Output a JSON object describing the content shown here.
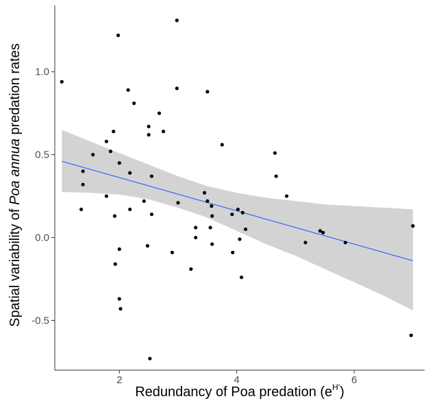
{
  "chart_data": {
    "type": "scatter",
    "title": "",
    "xlabel": "Redundancy of Poa predation (e",
    "xlabel_superscript": "H'",
    "xlabel_suffix": ")",
    "ylabel_parts": [
      "Spatial variability of ",
      "Poa annua",
      " predation rates"
    ],
    "xlim": [
      0.9,
      7.2
    ],
    "ylim": [
      -0.8,
      1.4
    ],
    "x_ticks": [
      2,
      4,
      6
    ],
    "x_tick_labels": [
      "2",
      "4",
      "6"
    ],
    "y_ticks": [
      -0.5,
      0.0,
      0.5,
      1.0
    ],
    "y_tick_labels": [
      "-0.5",
      "0.0",
      "0.5",
      "1.0"
    ],
    "grid": false,
    "legend": "none",
    "colors": {
      "points": "#000000",
      "fit_line": "#3366ff",
      "confidence_band": "#d3d3d3",
      "axis": "#333333"
    },
    "points": [
      {
        "x": 1.02,
        "y": 0.94
      },
      {
        "x": 1.35,
        "y": 0.17
      },
      {
        "x": 1.38,
        "y": 0.4
      },
      {
        "x": 1.38,
        "y": 0.32
      },
      {
        "x": 1.55,
        "y": 0.5
      },
      {
        "x": 1.78,
        "y": 0.58
      },
      {
        "x": 1.78,
        "y": 0.25
      },
      {
        "x": 1.85,
        "y": 0.52
      },
      {
        "x": 1.9,
        "y": 0.64
      },
      {
        "x": 1.92,
        "y": 0.13
      },
      {
        "x": 1.93,
        "y": -0.16
      },
      {
        "x": 1.98,
        "y": 1.22
      },
      {
        "x": 2.0,
        "y": 0.45
      },
      {
        "x": 2.0,
        "y": -0.07
      },
      {
        "x": 2.0,
        "y": -0.37
      },
      {
        "x": 2.02,
        "y": -0.43
      },
      {
        "x": 2.15,
        "y": 0.89
      },
      {
        "x": 2.18,
        "y": 0.39
      },
      {
        "x": 2.18,
        "y": 0.17
      },
      {
        "x": 2.25,
        "y": 0.81
      },
      {
        "x": 2.42,
        "y": 0.22
      },
      {
        "x": 2.48,
        "y": -0.05
      },
      {
        "x": 2.5,
        "y": 0.67
      },
      {
        "x": 2.5,
        "y": 0.62
      },
      {
        "x": 2.52,
        "y": -0.73
      },
      {
        "x": 2.55,
        "y": 0.37
      },
      {
        "x": 2.55,
        "y": 0.14
      },
      {
        "x": 2.68,
        "y": 0.75
      },
      {
        "x": 2.75,
        "y": 0.64
      },
      {
        "x": 2.9,
        "y": -0.09
      },
      {
        "x": 2.98,
        "y": 1.31
      },
      {
        "x": 2.98,
        "y": 0.9
      },
      {
        "x": 3.0,
        "y": 0.21
      },
      {
        "x": 3.22,
        "y": -0.19
      },
      {
        "x": 3.3,
        "y": 0.06
      },
      {
        "x": 3.3,
        "y": 0.0
      },
      {
        "x": 3.45,
        "y": 0.27
      },
      {
        "x": 3.5,
        "y": 0.88
      },
      {
        "x": 3.5,
        "y": 0.22
      },
      {
        "x": 3.55,
        "y": 0.06
      },
      {
        "x": 3.57,
        "y": 0.19
      },
      {
        "x": 3.58,
        "y": 0.13
      },
      {
        "x": 3.58,
        "y": -0.04
      },
      {
        "x": 3.75,
        "y": 0.56
      },
      {
        "x": 3.92,
        "y": 0.14
      },
      {
        "x": 3.93,
        "y": -0.09
      },
      {
        "x": 4.02,
        "y": 0.17
      },
      {
        "x": 4.05,
        "y": -0.01
      },
      {
        "x": 4.08,
        "y": -0.24
      },
      {
        "x": 4.1,
        "y": 0.15
      },
      {
        "x": 4.15,
        "y": 0.05
      },
      {
        "x": 4.65,
        "y": 0.51
      },
      {
        "x": 4.67,
        "y": 0.37
      },
      {
        "x": 4.85,
        "y": 0.25
      },
      {
        "x": 5.17,
        "y": -0.03
      },
      {
        "x": 5.42,
        "y": 0.04
      },
      {
        "x": 5.47,
        "y": 0.03
      },
      {
        "x": 5.85,
        "y": -0.03
      },
      {
        "x": 6.97,
        "y": -0.59
      },
      {
        "x": 7.0,
        "y": 0.07
      }
    ],
    "fit_line": {
      "x": [
        1.02,
        7.0
      ],
      "y": [
        0.46,
        -0.14
      ]
    },
    "confidence_band": {
      "x": [
        1.02,
        1.5,
        2.0,
        2.5,
        3.0,
        3.5,
        4.0,
        4.5,
        5.0,
        5.5,
        6.0,
        6.5,
        7.0
      ],
      "lower": [
        0.275,
        0.27,
        0.26,
        0.23,
        0.18,
        0.12,
        0.04,
        -0.04,
        -0.11,
        -0.19,
        -0.27,
        -0.35,
        -0.44
      ],
      "upper": [
        0.65,
        0.58,
        0.51,
        0.44,
        0.37,
        0.31,
        0.27,
        0.24,
        0.22,
        0.2,
        0.19,
        0.18,
        0.17
      ]
    }
  }
}
